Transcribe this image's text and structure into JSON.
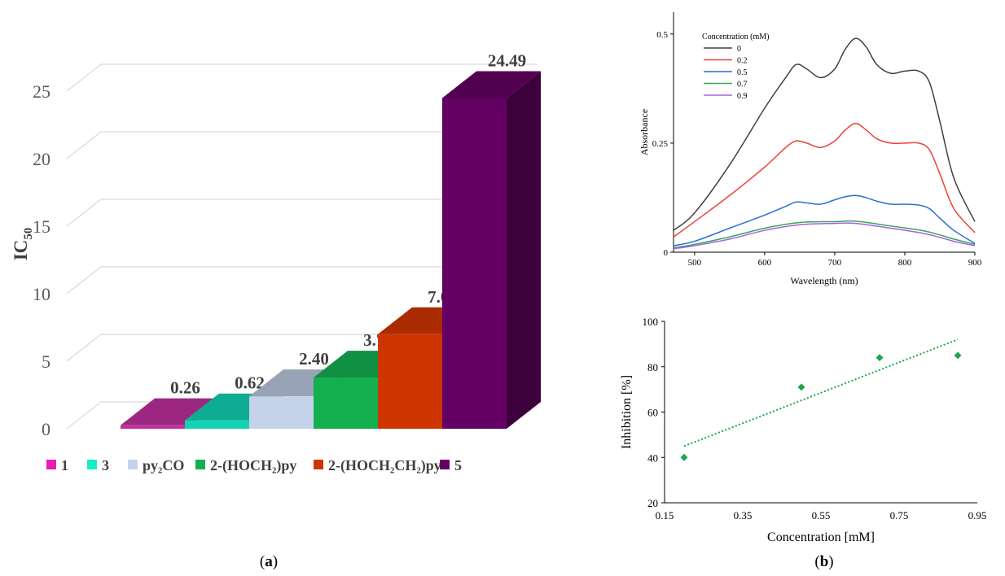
{
  "panels": [
    {
      "label": "(a)",
      "letter": "a"
    },
    {
      "label": "(b)",
      "letter": "b"
    }
  ],
  "chart_data": [
    {
      "id": "a",
      "type": "bar",
      "style": "3d",
      "ylabel_main": "IC",
      "ylabel_sub": "50",
      "ylim": [
        0,
        25
      ],
      "yticks": [
        0,
        5,
        10,
        15,
        20,
        25
      ],
      "grid": true,
      "legend_position": "bottom",
      "categories": [
        {
          "label": "1",
          "value": 0.26,
          "value_label": "0.26",
          "color": "#c0309c",
          "legend_color": "#e61eb4"
        },
        {
          "label": "3",
          "value": 0.62,
          "value_label": "0.62",
          "color": "#12d2b4",
          "legend_color": "#12eec6"
        },
        {
          "label": "py₂CO",
          "value": 2.4,
          "value_label": "2.40",
          "color": "#c5d3ea",
          "legend_color": "#c5d3ea"
        },
        {
          "label": "2-(HOCH₂)py",
          "value": 3.79,
          "value_label": "3.79",
          "color": "#14b050",
          "legend_color": "#14b050"
        },
        {
          "label": "2-(HOCH₂CH₂)py",
          "value": 7.0,
          "value_label": "7.00",
          "color": "#cf3500",
          "legend_color": "#cf3500"
        },
        {
          "label": "5",
          "value": 24.49,
          "value_label": "24.49",
          "color": "#640064",
          "legend_color": "#640064"
        }
      ]
    },
    {
      "id": "b-top",
      "type": "line",
      "xlabel": "Wavelength (nm)",
      "ylabel": "Absorbance",
      "xlim": [
        470,
        900
      ],
      "ylim": [
        0,
        0.55
      ],
      "xticks": [
        500,
        600,
        700,
        800,
        900
      ],
      "yticks": [
        0,
        0.25,
        0.5
      ],
      "ytick_labels": [
        "0",
        "0.25",
        "0.5"
      ],
      "grid": false,
      "legend_title": "Concentration (mM)",
      "legend_position": "top-left",
      "series": [
        {
          "name": "0",
          "color": "#404040",
          "x": [
            470,
            500,
            550,
            600,
            630,
            645,
            660,
            680,
            700,
            715,
            730,
            745,
            760,
            780,
            800,
            820,
            835,
            850,
            870,
            900
          ],
          "y": [
            0.05,
            0.09,
            0.2,
            0.33,
            0.4,
            0.43,
            0.42,
            0.4,
            0.42,
            0.465,
            0.49,
            0.47,
            0.43,
            0.41,
            0.415,
            0.415,
            0.39,
            0.3,
            0.17,
            0.07
          ]
        },
        {
          "name": "0.2",
          "color": "#e8413c",
          "x": [
            470,
            500,
            550,
            600,
            630,
            645,
            660,
            680,
            700,
            715,
            730,
            745,
            760,
            780,
            800,
            820,
            835,
            850,
            870,
            900
          ],
          "y": [
            0.035,
            0.07,
            0.13,
            0.195,
            0.24,
            0.255,
            0.25,
            0.24,
            0.255,
            0.28,
            0.295,
            0.28,
            0.26,
            0.25,
            0.25,
            0.25,
            0.235,
            0.18,
            0.1,
            0.045
          ]
        },
        {
          "name": "0.5",
          "color": "#2a6fd1",
          "x": [
            470,
            500,
            550,
            600,
            630,
            645,
            660,
            680,
            700,
            715,
            730,
            745,
            760,
            780,
            800,
            820,
            835,
            850,
            870,
            900
          ],
          "y": [
            0.015,
            0.025,
            0.055,
            0.085,
            0.105,
            0.115,
            0.113,
            0.11,
            0.12,
            0.127,
            0.13,
            0.125,
            0.117,
            0.11,
            0.11,
            0.108,
            0.1,
            0.078,
            0.05,
            0.02
          ]
        },
        {
          "name": "0.7",
          "color": "#3aa55d",
          "x": [
            470,
            500,
            550,
            600,
            650,
            700,
            730,
            780,
            830,
            870,
            900
          ],
          "y": [
            0.01,
            0.018,
            0.035,
            0.055,
            0.068,
            0.07,
            0.071,
            0.06,
            0.048,
            0.03,
            0.018
          ]
        },
        {
          "name": "0.9",
          "color": "#a860e0",
          "x": [
            470,
            500,
            550,
            600,
            650,
            700,
            730,
            780,
            830,
            870,
            900
          ],
          "y": [
            0.008,
            0.015,
            0.03,
            0.05,
            0.063,
            0.066,
            0.066,
            0.055,
            0.042,
            0.025,
            0.015
          ]
        }
      ]
    },
    {
      "id": "b-bottom",
      "type": "scatter",
      "xlabel": "Concentration [mM]",
      "ylabel": "Inhibition [%]",
      "xlim": [
        0.15,
        0.95
      ],
      "ylim": [
        20,
        100
      ],
      "xticks": [
        0.15,
        0.35,
        0.55,
        0.75,
        0.95
      ],
      "yticks": [
        20,
        40,
        60,
        80,
        100
      ],
      "grid": false,
      "marker_color": "#1ea64a",
      "points": [
        {
          "x": 0.2,
          "y": 40
        },
        {
          "x": 0.5,
          "y": 71
        },
        {
          "x": 0.7,
          "y": 84
        },
        {
          "x": 0.9,
          "y": 85
        }
      ],
      "trendline": {
        "x": [
          0.2,
          0.9
        ],
        "y": [
          45,
          92
        ]
      }
    }
  ]
}
